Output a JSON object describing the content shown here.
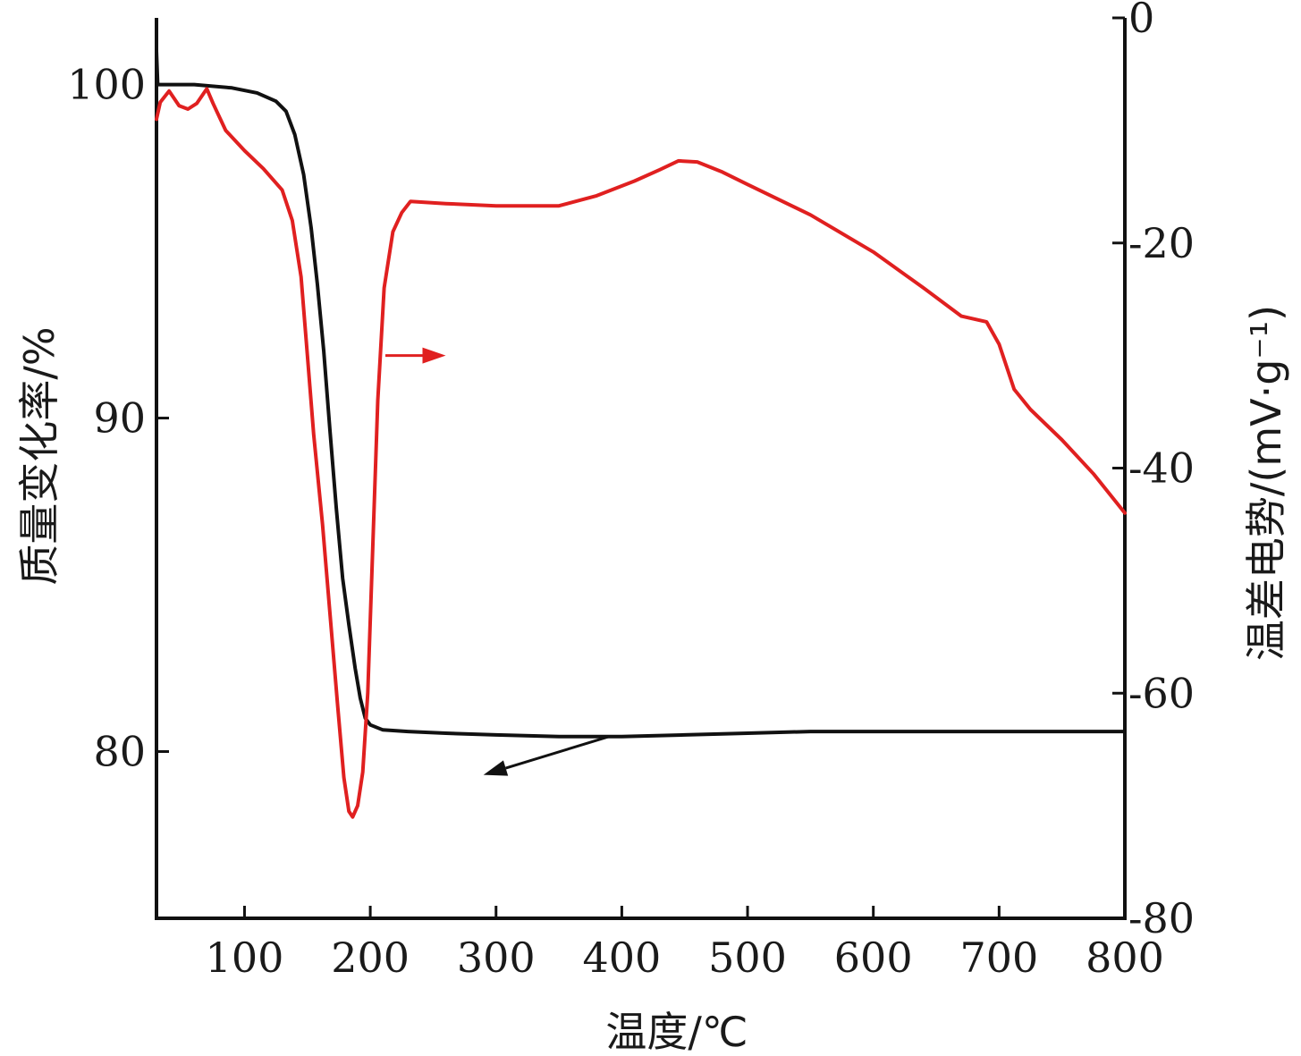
{
  "chart_data": {
    "type": "line",
    "xlabel": "温度/℃",
    "ylabel_left": "质量变化率/%",
    "ylabel_right": "温差电势/(mV·g⁻¹)",
    "xlim": [
      30,
      800
    ],
    "ylim_left": [
      75,
      102
    ],
    "ylim_right": [
      -80,
      0
    ],
    "x_ticks": [
      100,
      200,
      300,
      400,
      500,
      600,
      700,
      800
    ],
    "y_left_ticks": [
      80,
      90,
      100
    ],
    "y_right_ticks": [
      0,
      -20,
      -40,
      -60,
      -80
    ],
    "grid": false,
    "series": [
      {
        "axis": "left",
        "color": "#111111",
        "points": [
          [
            30,
            101.0
          ],
          [
            31,
            100.0
          ],
          [
            60,
            100.0
          ],
          [
            90,
            99.9
          ],
          [
            110,
            99.75
          ],
          [
            125,
            99.5
          ],
          [
            133,
            99.2
          ],
          [
            140,
            98.5
          ],
          [
            147,
            97.3
          ],
          [
            153,
            95.7
          ],
          [
            158,
            94.0
          ],
          [
            163,
            92.0
          ],
          [
            168,
            89.6
          ],
          [
            173,
            87.3
          ],
          [
            178,
            85.2
          ],
          [
            183,
            83.8
          ],
          [
            188,
            82.5
          ],
          [
            192,
            81.6
          ],
          [
            196,
            81.0
          ],
          [
            200,
            80.8
          ],
          [
            210,
            80.65
          ],
          [
            230,
            80.6
          ],
          [
            260,
            80.55
          ],
          [
            300,
            80.5
          ],
          [
            350,
            80.45
          ],
          [
            400,
            80.45
          ],
          [
            450,
            80.5
          ],
          [
            500,
            80.55
          ],
          [
            550,
            80.6
          ],
          [
            600,
            80.6
          ],
          [
            700,
            80.6
          ],
          [
            800,
            80.6
          ]
        ]
      },
      {
        "axis": "right",
        "color": "#e02020",
        "points": [
          [
            30,
            -9
          ],
          [
            33,
            -7.5
          ],
          [
            40,
            -6.5
          ],
          [
            48,
            -7.8
          ],
          [
            55,
            -8.1
          ],
          [
            62,
            -7.6
          ],
          [
            70,
            -6.3
          ],
          [
            75,
            -7.6
          ],
          [
            85,
            -10
          ],
          [
            100,
            -11.8
          ],
          [
            115,
            -13.4
          ],
          [
            130,
            -15.3
          ],
          [
            138,
            -18.0
          ],
          [
            145,
            -23.0
          ],
          [
            150,
            -30.0
          ],
          [
            155,
            -37.0
          ],
          [
            162,
            -45.0
          ],
          [
            168,
            -53.0
          ],
          [
            174,
            -61.0
          ],
          [
            179,
            -67.5
          ],
          [
            183,
            -70.5
          ],
          [
            186,
            -71.0
          ],
          [
            190,
            -70.0
          ],
          [
            194,
            -67.0
          ],
          [
            198,
            -60.0
          ],
          [
            202,
            -47.0
          ],
          [
            206,
            -34.0
          ],
          [
            211,
            -24.0
          ],
          [
            218,
            -19.0
          ],
          [
            225,
            -17.3
          ],
          [
            232,
            -16.3
          ],
          [
            260,
            -16.5
          ],
          [
            300,
            -16.7
          ],
          [
            350,
            -16.7
          ],
          [
            380,
            -15.8
          ],
          [
            410,
            -14.5
          ],
          [
            430,
            -13.5
          ],
          [
            445,
            -12.7
          ],
          [
            460,
            -12.8
          ],
          [
            480,
            -13.7
          ],
          [
            500,
            -14.8
          ],
          [
            550,
            -17.5
          ],
          [
            600,
            -20.8
          ],
          [
            640,
            -24.0
          ],
          [
            670,
            -26.5
          ],
          [
            690,
            -27.0
          ],
          [
            700,
            -29.0
          ],
          [
            712,
            -33.0
          ],
          [
            725,
            -34.8
          ],
          [
            750,
            -37.5
          ],
          [
            775,
            -40.5
          ],
          [
            800,
            -44.0
          ]
        ]
      }
    ],
    "annotations": [
      {
        "color": "#e02020",
        "from": [
          212,
          -30
        ],
        "to": [
          260,
          -30
        ]
      },
      {
        "color": "#111111",
        "from": [
          390,
          80.45
        ],
        "to": [
          290,
          79.3
        ]
      }
    ]
  }
}
